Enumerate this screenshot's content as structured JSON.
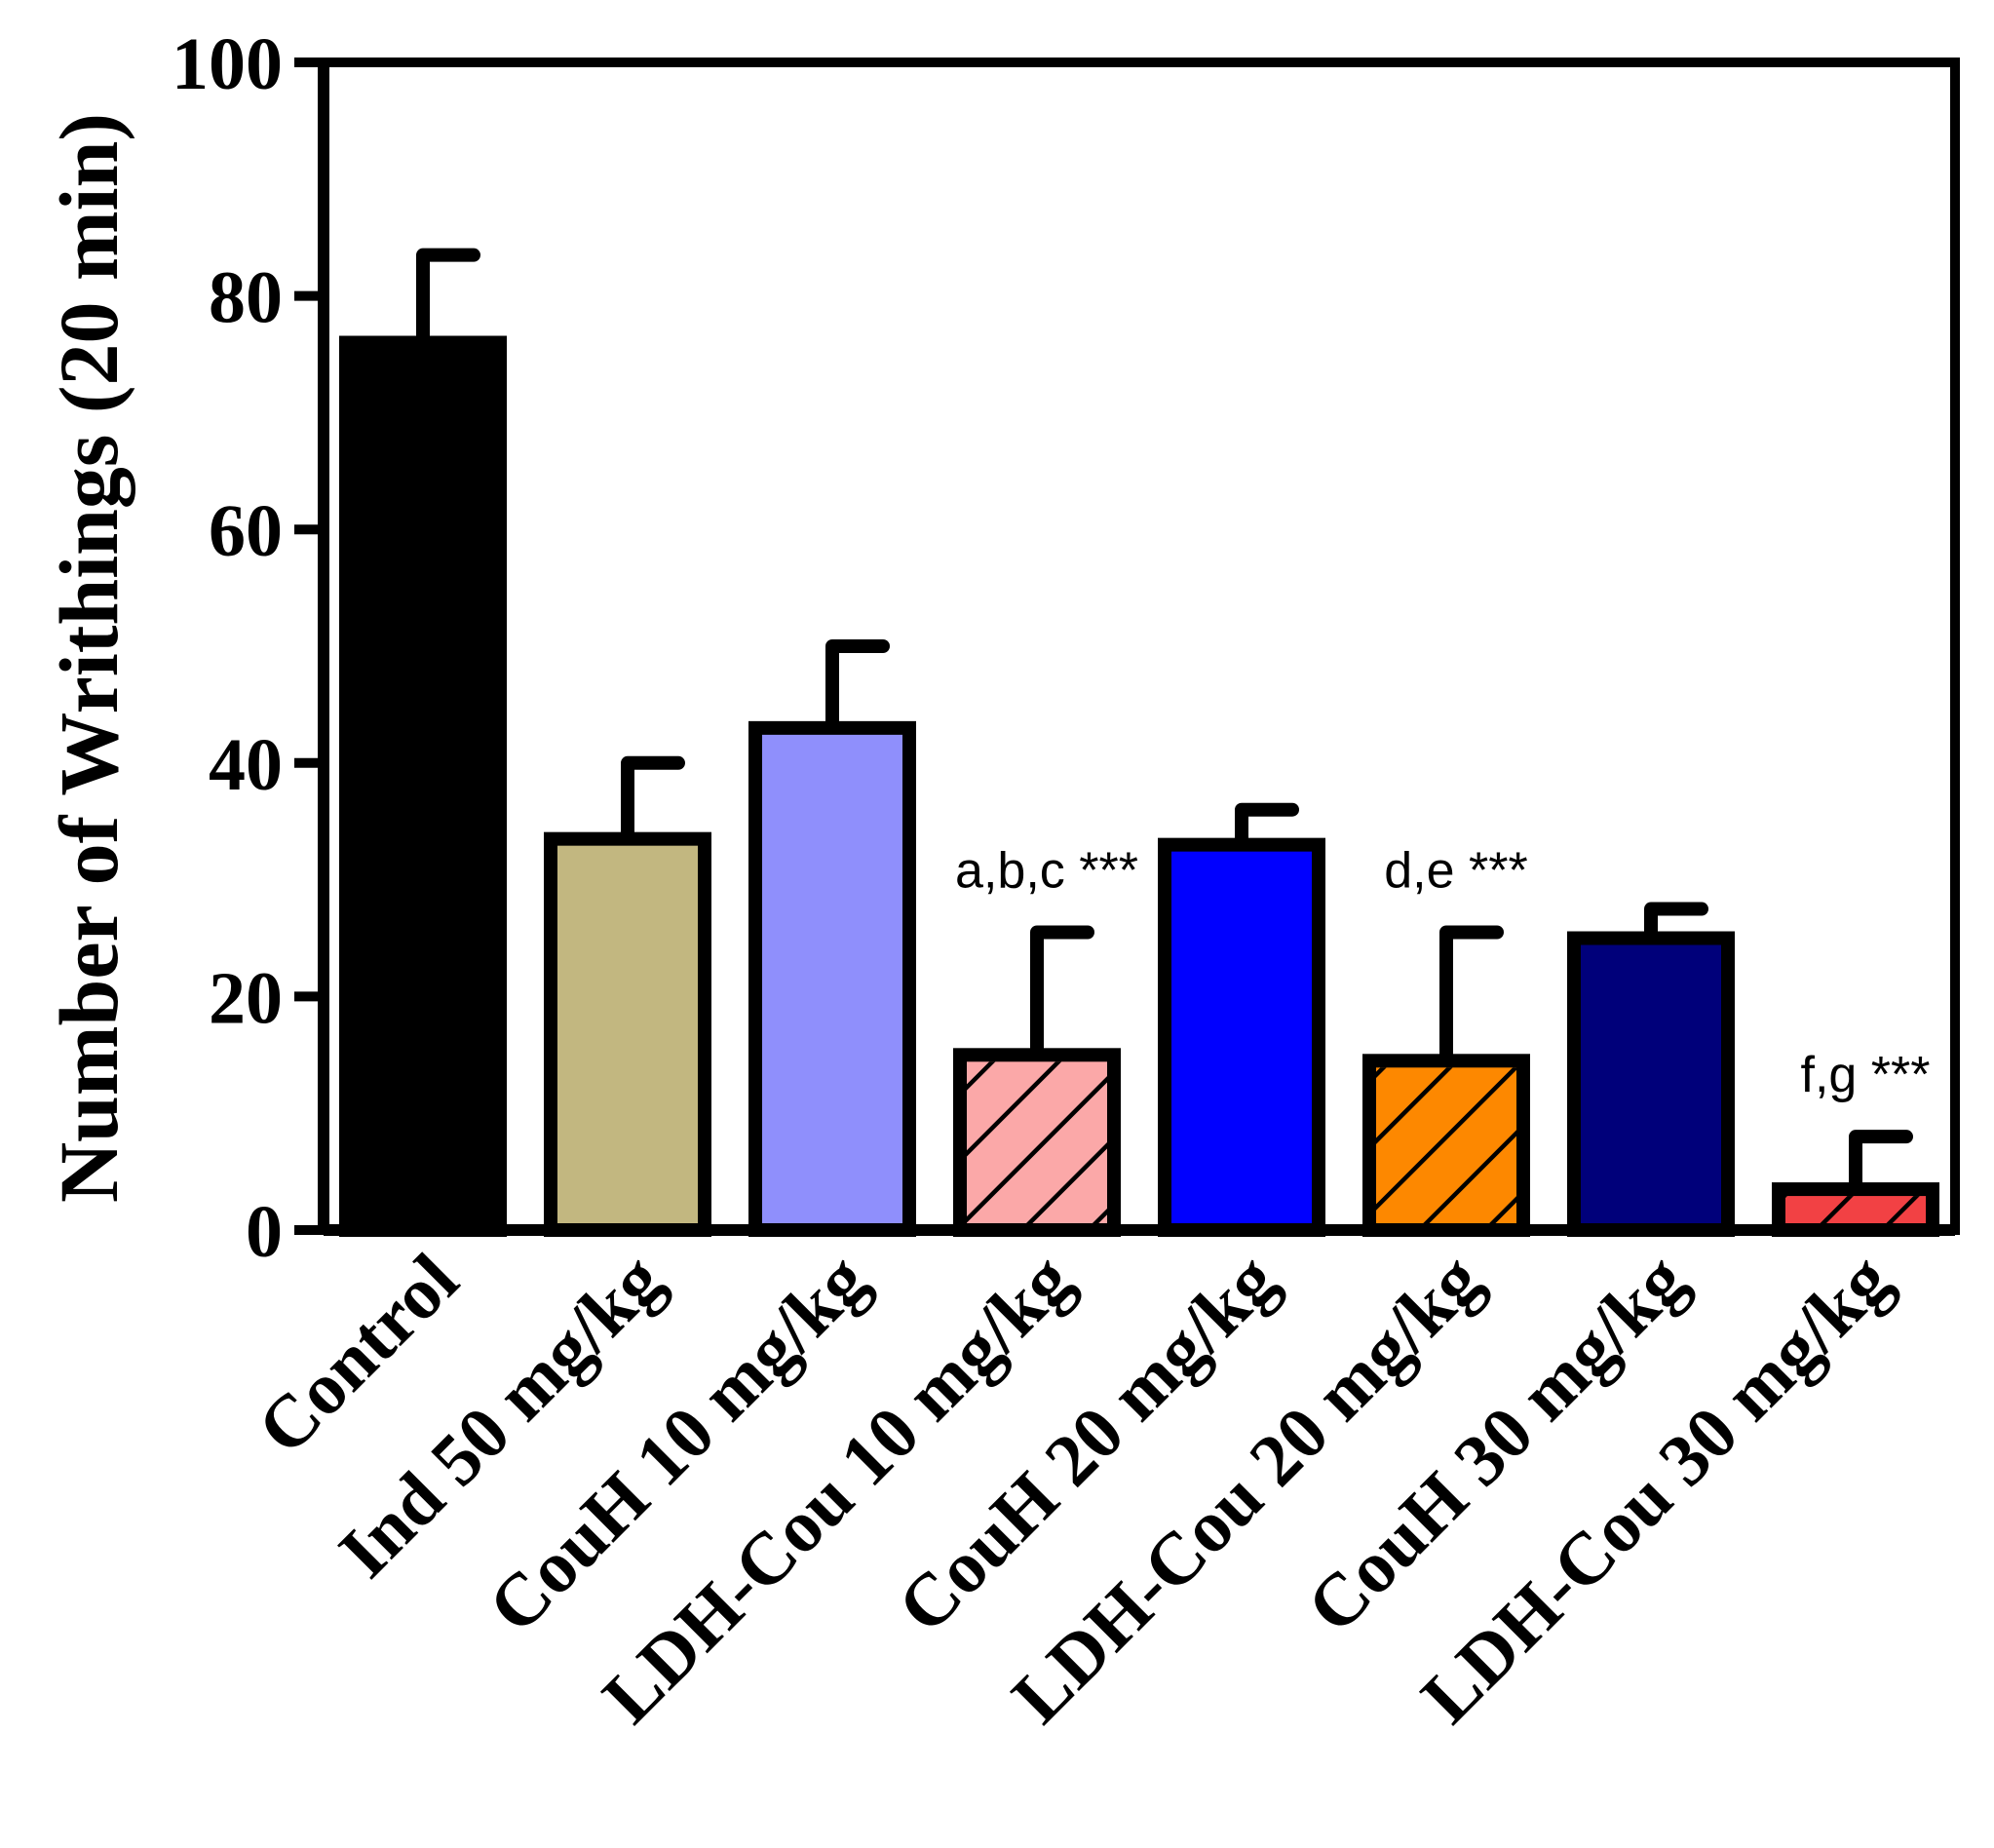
{
  "chart_data": {
    "type": "bar",
    "title": "",
    "xlabel": "",
    "ylabel": "Number of  Writhings (20 min)",
    "ylim": [
      0,
      100
    ],
    "yticks": [
      0,
      20,
      40,
      60,
      80,
      100
    ],
    "grid": false,
    "categories": [
      "Control",
      "Ind 50 mg/kg",
      "CouH 10 mg/kg",
      "LDH-Cou 10 mg/kg",
      "CouH 20 mg/kg",
      "LDH-Cou 20 mg/kg",
      "CouH 30 mg/kg",
      "LDH-Cou 30 mg/kg"
    ],
    "values": [
      76,
      33.5,
      43,
      15,
      33,
      14.5,
      25,
      3.5
    ],
    "errors": [
      7.5,
      6.5,
      7,
      10.5,
      3,
      11,
      2.5,
      4.5
    ],
    "fills": [
      "#000000",
      "#c2b780",
      "#8f8ffc",
      "#fba8a8",
      "#0000ff",
      "#fd8800",
      "#00007a",
      "#f24144"
    ],
    "hatched": [
      false,
      false,
      false,
      true,
      false,
      true,
      false,
      true
    ],
    "annotations": [
      {
        "category": "LDH-Cou 10 mg/kg",
        "text": "a,b,c ***"
      },
      {
        "category": "LDH-Cou 20 mg/kg",
        "text": "d,e ***"
      },
      {
        "category": "LDH-Cou 30 mg/kg",
        "text": "f,g ***"
      }
    ]
  }
}
